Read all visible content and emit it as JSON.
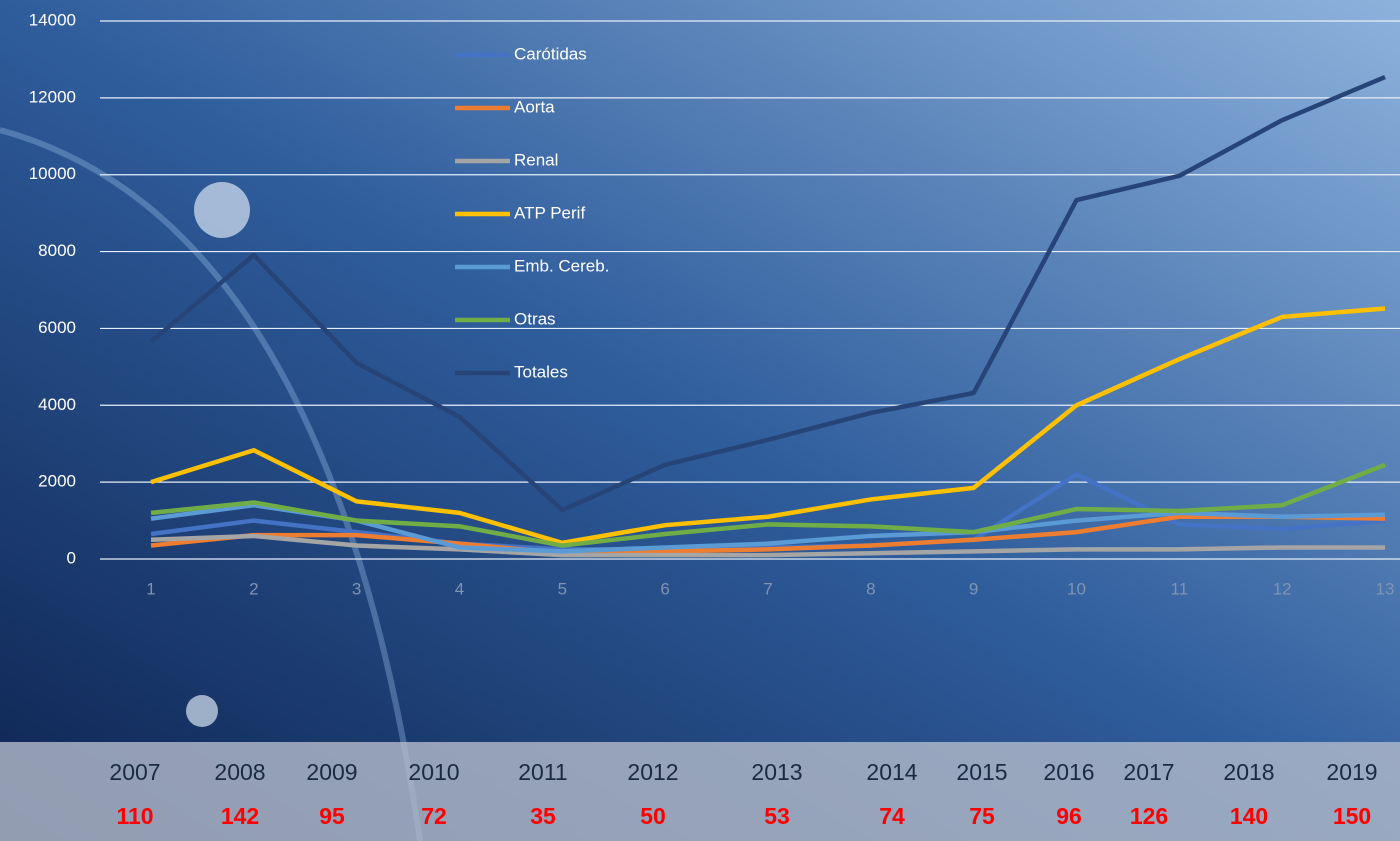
{
  "chart_data": {
    "type": "line",
    "x": [
      1,
      2,
      3,
      4,
      5,
      6,
      7,
      8,
      9,
      10,
      11,
      12,
      13
    ],
    "xlim": [
      1,
      13
    ],
    "xticks": [
      1,
      2,
      3,
      4,
      5,
      6,
      7,
      8,
      9,
      10,
      11,
      12,
      13
    ],
    "ylim": [
      0,
      14000
    ],
    "yticks": [
      0,
      2000,
      4000,
      6000,
      8000,
      10000,
      12000,
      14000
    ],
    "grid": true,
    "legend": "top",
    "series": [
      {
        "name": "Carótidas",
        "color": "#4472c4",
        "values": [
          650,
          1000,
          700,
          400,
          250,
          250,
          300,
          350,
          500,
          2200,
          900,
          780,
          1000
        ]
      },
      {
        "name": "Aorta",
        "color": "#ed7d31",
        "values": [
          350,
          620,
          620,
          400,
          150,
          200,
          250,
          350,
          500,
          700,
          1100,
          1100,
          1050
        ]
      },
      {
        "name": "Renal",
        "color": "#a5a5a5",
        "values": [
          500,
          600,
          350,
          250,
          100,
          100,
          100,
          150,
          200,
          250,
          250,
          300,
          300
        ]
      },
      {
        "name": "ATP Perif",
        "color": "#ffc000",
        "values": [
          2000,
          2830,
          1500,
          1200,
          420,
          880,
          1100,
          1550,
          1850,
          4000,
          5200,
          6300,
          6520
        ]
      },
      {
        "name": "Emb. Cereb.",
        "color": "#5b9bd5",
        "values": [
          1050,
          1400,
          1000,
          300,
          200,
          300,
          400,
          600,
          700,
          1000,
          1200,
          1100,
          1150
        ]
      },
      {
        "name": "Otras",
        "color": "#70ad47",
        "values": [
          1200,
          1470,
          1000,
          850,
          350,
          650,
          900,
          850,
          700,
          1300,
          1250,
          1400,
          2450
        ]
      },
      {
        "name": "Totales",
        "color": "#264478",
        "values": [
          5650,
          7910,
          5100,
          3700,
          1275,
          2450,
          3100,
          3800,
          4320,
          9340,
          9970,
          11420,
          12540
        ]
      }
    ]
  },
  "footer": {
    "years": [
      "2007",
      "2008",
      "2009",
      "2010",
      "2011",
      "2012",
      "2013",
      "2014",
      "2015",
      "2016",
      "2017",
      "2018",
      "2019"
    ],
    "counts": [
      "110",
      "142",
      "95",
      "72",
      "35",
      "50",
      "53",
      "74",
      "75",
      "96",
      "126",
      "140",
      "150"
    ]
  }
}
